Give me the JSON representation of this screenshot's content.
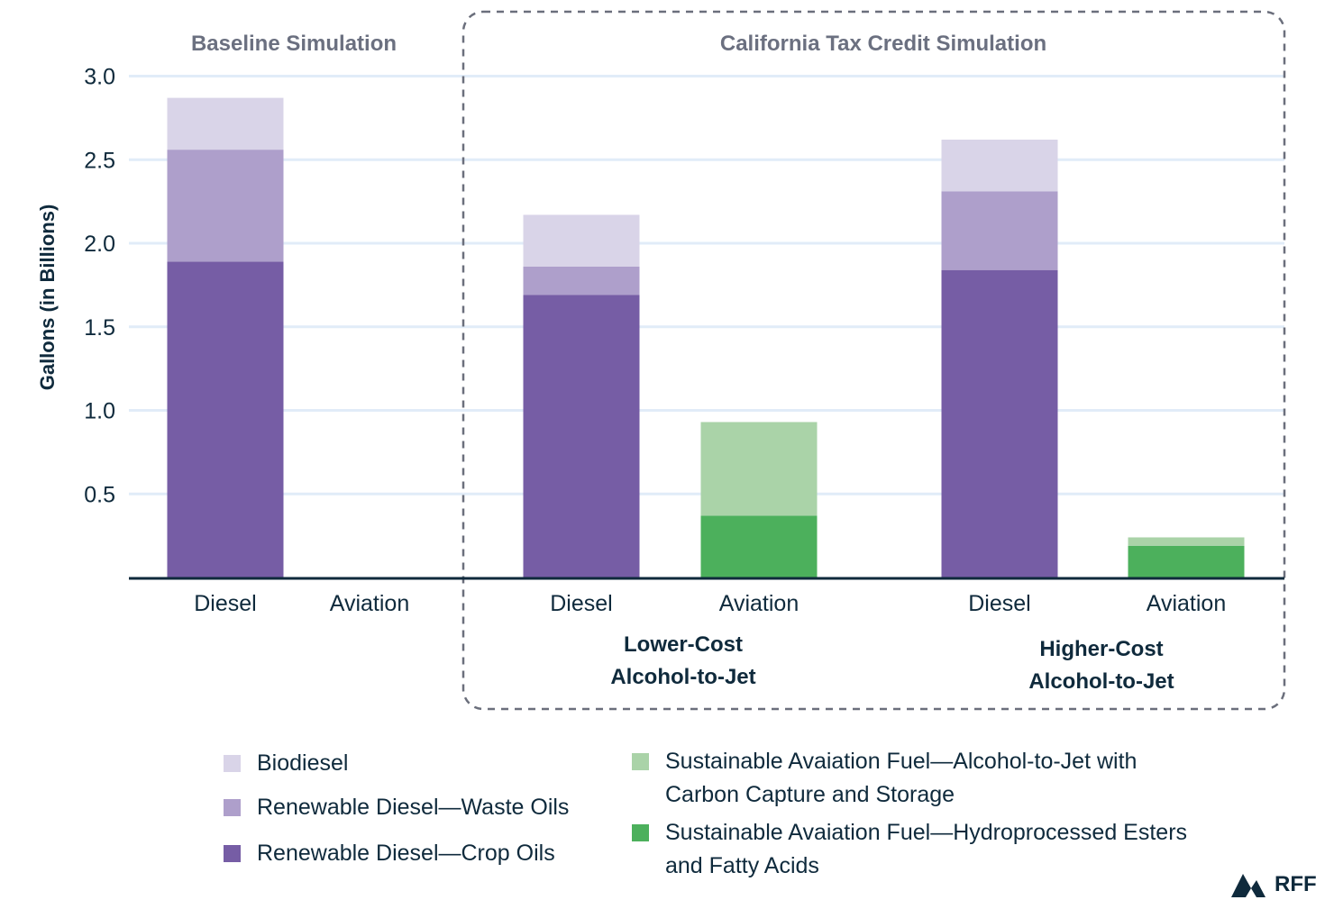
{
  "chart_data": {
    "type": "bar",
    "stacked": true,
    "title": "",
    "xlabel": "",
    "ylabel": "Gallons (in Billions)",
    "ylim": [
      0,
      3.0
    ],
    "yticks": [
      0.5,
      1.0,
      1.5,
      2.0,
      2.5,
      3.0
    ],
    "ytick_labels": [
      "0.5",
      "1.0",
      "1.5",
      "2.0",
      "2.5",
      "3.0"
    ],
    "grid": true,
    "panels": [
      {
        "label": "Baseline Simulation",
        "boxed": false
      },
      {
        "label": "California Tax Credit Simulation",
        "boxed": true
      }
    ],
    "groups": [
      {
        "label": "",
        "panel": 0
      },
      {
        "label": "Lower-Cost Alcohol-to-Jet",
        "label_lines": [
          "Lower-Cost",
          "Alcohol-to-Jet"
        ],
        "panel": 1
      },
      {
        "label": "Higher-Cost Alcohol-to-Jet",
        "label_lines": [
          "Higher-Cost",
          "Alcohol-to-Jet"
        ],
        "panel": 1
      }
    ],
    "categories": [
      {
        "label": "Diesel",
        "group": 0
      },
      {
        "label": "Aviation",
        "group": 0
      },
      {
        "label": "Diesel",
        "group": 1
      },
      {
        "label": "Aviation",
        "group": 1
      },
      {
        "label": "Diesel",
        "group": 2
      },
      {
        "label": "Aviation",
        "group": 2
      }
    ],
    "series": [
      {
        "name": "Renewable Diesel—Crop Oils",
        "color": "#765da5",
        "values": [
          1.89,
          0,
          1.69,
          0,
          1.84,
          0
        ]
      },
      {
        "name": "Renewable Diesel—Waste Oils",
        "color": "#ae9fcb",
        "values": [
          0.67,
          0,
          0.17,
          0,
          0.47,
          0
        ]
      },
      {
        "name": "Biodiesel",
        "color": "#d9d4e8",
        "values": [
          0.31,
          0,
          0.31,
          0,
          0.31,
          0
        ]
      },
      {
        "name": "Sustainable Avaiation Fuel—Hydroprocessed Esters and Fatty Acids",
        "color": "#4cb05c",
        "values": [
          0,
          0,
          0,
          0.37,
          0,
          0.19
        ]
      },
      {
        "name": "Sustainable Avaiation Fuel—Alcohol-to-Jet with Carbon Capture and Storage",
        "color": "#aad3a8",
        "values": [
          0,
          0,
          0,
          0.56,
          0,
          0.05
        ]
      }
    ],
    "legend": [
      {
        "label": "Biodiesel",
        "color": "#d9d4e8",
        "lines": [
          "Biodiesel"
        ]
      },
      {
        "label": "Renewable Diesel—Waste Oils",
        "color": "#ae9fcb",
        "lines": [
          "Renewable Diesel—Waste Oils"
        ]
      },
      {
        "label": "Renewable Diesel—Crop Oils",
        "color": "#765da5",
        "lines": [
          "Renewable Diesel—Crop Oils"
        ]
      },
      {
        "label": "Sustainable Avaiation Fuel—Alcohol-to-Jet with Carbon Capture and Storage",
        "color": "#aad3a8",
        "lines": [
          "Sustainable Avaiation Fuel—Alcohol-to-Jet with",
          "Carbon Capture and Storage"
        ]
      },
      {
        "label": "Sustainable Avaiation Fuel—Hydroprocessed Esters and Fatty Acids",
        "color": "#4cb05c",
        "lines": [
          "Sustainable Avaiation Fuel—Hydroprocessed Esters",
          "and Fatty Acids"
        ]
      }
    ],
    "legend_position": "bottom"
  },
  "branding": {
    "logo_text": "RFF"
  },
  "colors": {
    "text": "#0f2a3c",
    "panel_title": "#6b7080",
    "grid": "#e1ecf8",
    "axis": "#0f2a3c",
    "box": "#6b6f7c"
  }
}
